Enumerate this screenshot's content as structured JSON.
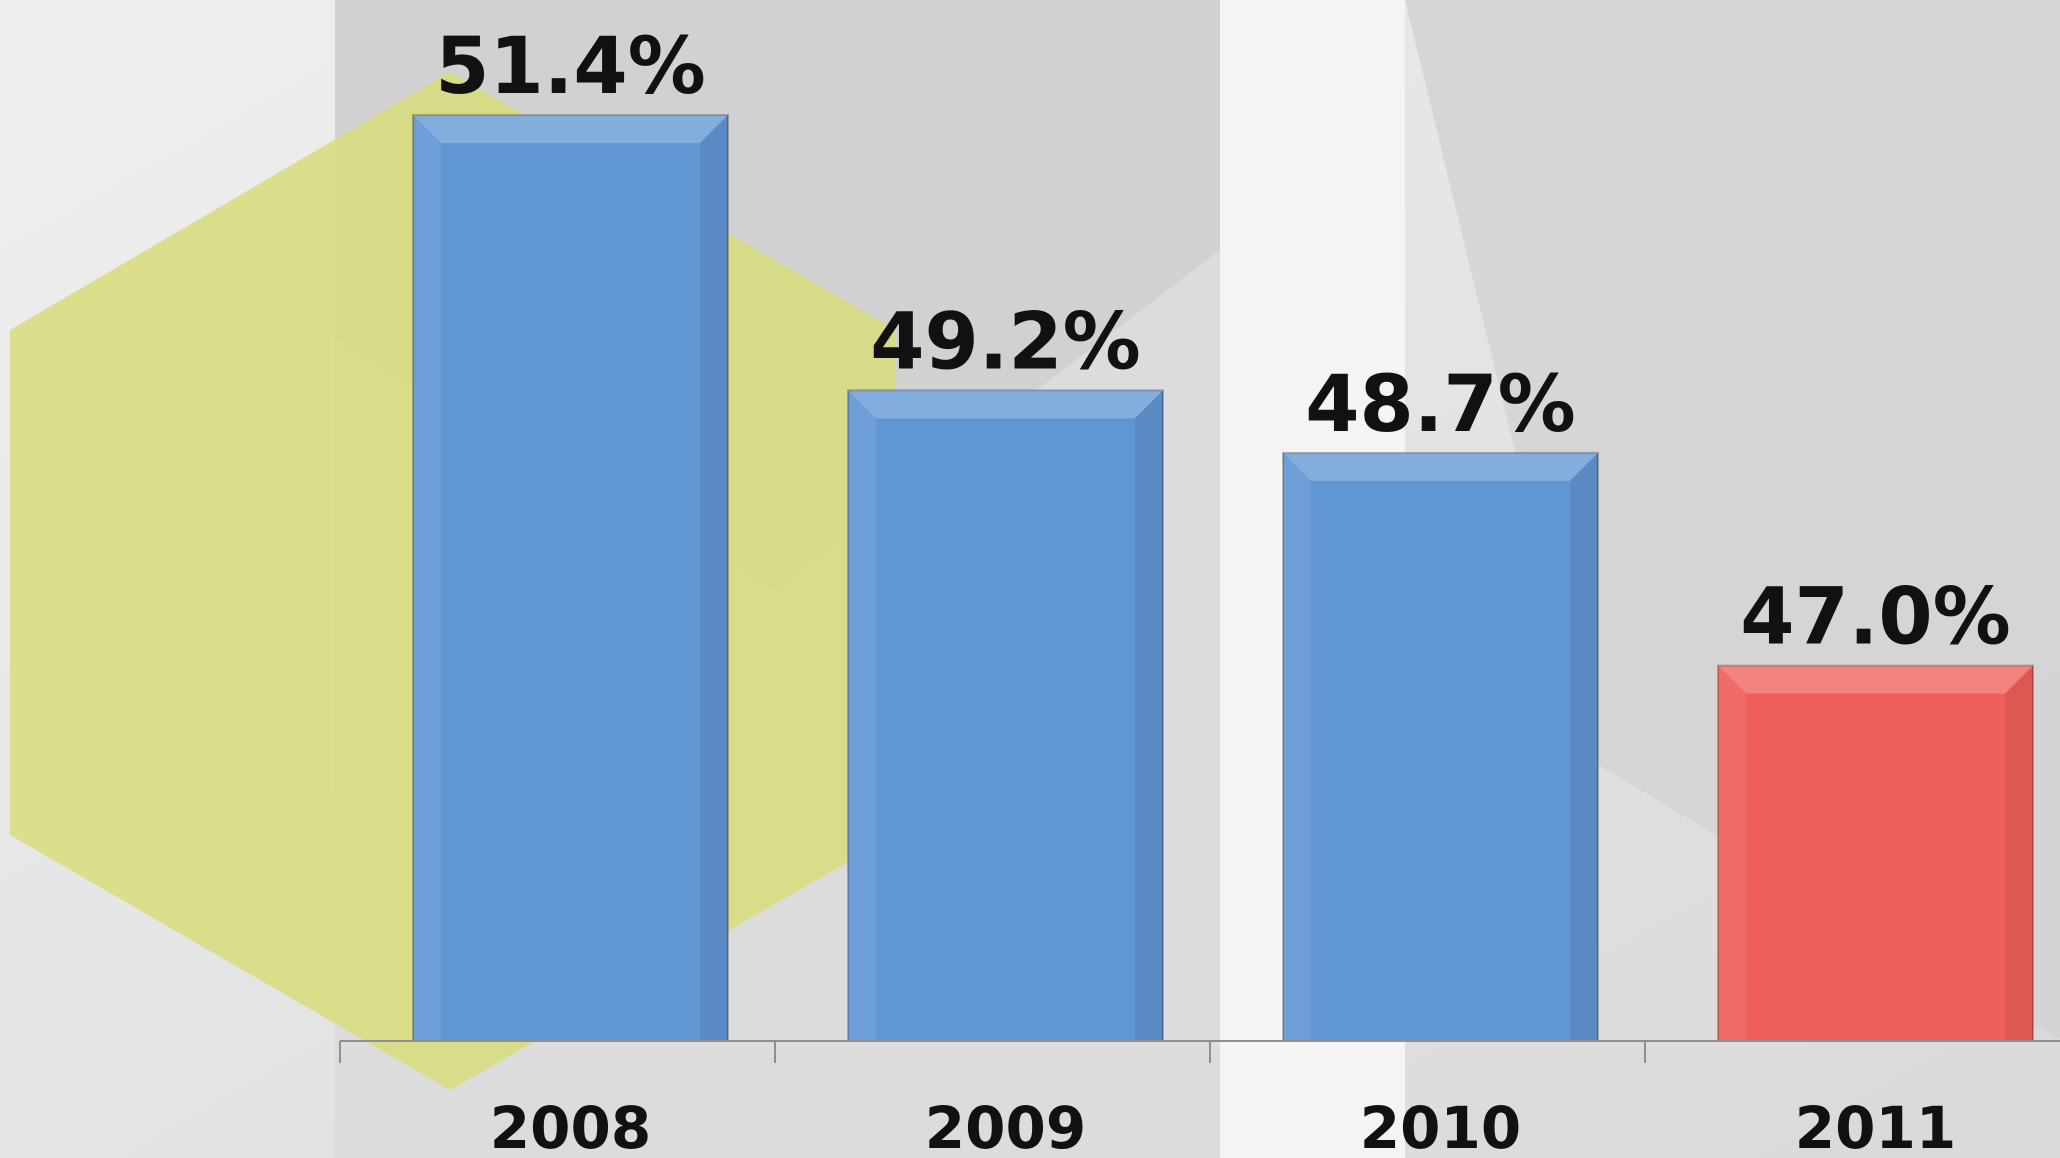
{
  "chart_data": {
    "type": "bar",
    "categories": [
      "2008",
      "2009",
      "2010",
      "2011"
    ],
    "values": [
      51.4,
      49.2,
      48.7,
      47.0
    ],
    "data_labels": [
      "51.4%",
      "49.2%",
      "48.7%",
      "47.0%"
    ],
    "title": "",
    "xlabel": "",
    "ylabel": "",
    "ylim": [
      44,
      52
    ],
    "grid": false,
    "bar_colors": [
      "#6196d4",
      "#6196d4",
      "#6196d4",
      "#f0605a"
    ],
    "background_colors": [
      "#e6e6e6",
      "#d8d8d8",
      "#f3f3f3",
      "#d8dc7a"
    ]
  }
}
